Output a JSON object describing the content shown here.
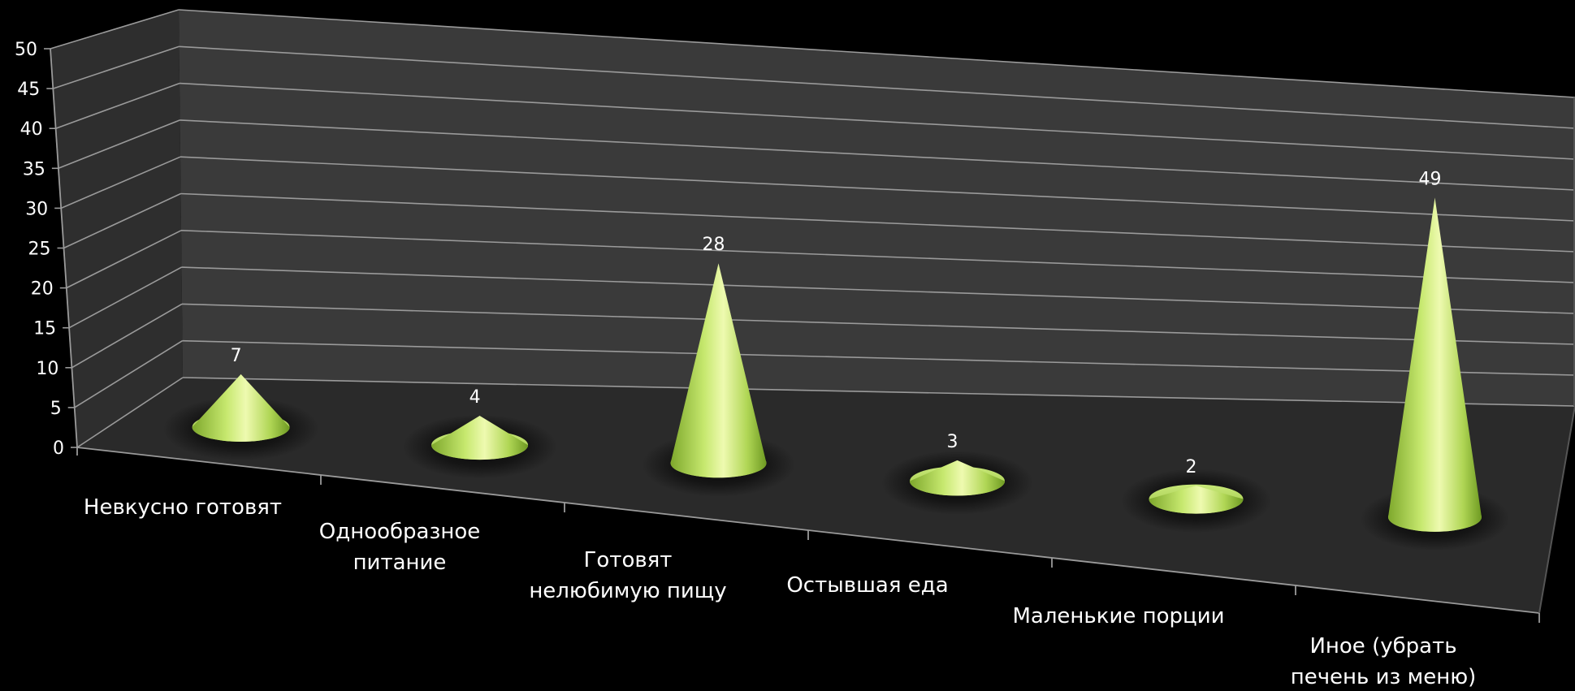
{
  "chart_data": {
    "type": "bar",
    "style": "3d-cone",
    "categories": [
      [
        "Невкусно готовят"
      ],
      [
        "Однообразное",
        "питание"
      ],
      [
        "Готовят",
        "нелюбимую пищу"
      ],
      [
        "Остывшая еда"
      ],
      [
        "Маленькие порции"
      ],
      [
        "Иное (убрать",
        "печень из меню)"
      ]
    ],
    "values": [
      7,
      4,
      28,
      3,
      2,
      49
    ],
    "data_labels": [
      "7",
      "4",
      "28",
      "3",
      "2",
      "49"
    ],
    "yticks": [
      "0",
      "5",
      "10",
      "15",
      "20",
      "25",
      "30",
      "35",
      "40",
      "45",
      "50"
    ],
    "ylim": [
      0,
      50
    ],
    "grid": true,
    "legend": "none",
    "colors": {
      "background": "#000000",
      "back_wall": "#3a3a3a",
      "side_wall": "#2e2e2e",
      "floor": "#2a2a2a",
      "gridline": "#9a9a9a",
      "cone_light": "#e8f7a0",
      "cone_mid": "#b5dc5c",
      "cone_dark": "#6e9a22",
      "text": "#ffffff"
    }
  }
}
